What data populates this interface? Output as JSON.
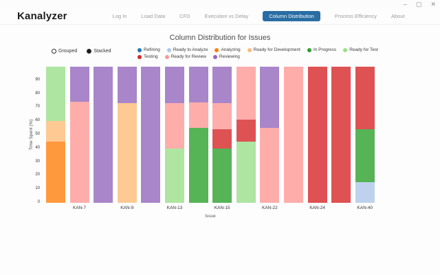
{
  "window": {
    "controls": {
      "minimize": "–",
      "maximize": "▢",
      "close": "✕"
    }
  },
  "header": {
    "brand": "Kanalyzer",
    "accent_color": "#2a6da3",
    "nav": [
      {
        "label": "Log In",
        "active": false
      },
      {
        "label": "Load Data",
        "active": false
      },
      {
        "label": "CFD",
        "active": false
      },
      {
        "label": "Execution vs Delay",
        "active": false
      },
      {
        "label": "Column Distribution",
        "active": true
      },
      {
        "label": "Process Efficiency",
        "active": false
      },
      {
        "label": "About",
        "active": false
      }
    ]
  },
  "chart": {
    "title": "Column Distribution for Issues",
    "mode_options": [
      {
        "label": "Grouped",
        "selected": false
      },
      {
        "label": "Stacked",
        "selected": true
      }
    ]
  },
  "chart_data": {
    "type": "bar",
    "stacked": true,
    "title": "Column Distribution for Issues",
    "xlabel": "Issue",
    "ylabel": "Time Spent (%)",
    "ylim": [
      0,
      100
    ],
    "y_ticks": [
      0,
      10,
      20,
      30,
      40,
      50,
      60,
      70,
      80,
      90
    ],
    "grid": false,
    "legend_position": "top",
    "legend_rows": [
      [
        "Refining",
        "Ready to Analyze",
        "Analyzing",
        "Ready for Development",
        "In Progress",
        "Ready for Test"
      ],
      [
        "Testing",
        "Ready for Review",
        "Reviewing"
      ]
    ],
    "colors": {
      "Refining": "#1f77b4",
      "Ready to Analyze": "#aec7e8",
      "Analyzing": "#ff7f0e",
      "Ready for Development": "#ffbb78",
      "In Progress": "#2ca02c",
      "Ready for Test": "#98df8a",
      "Testing": "#d62728",
      "Ready for Review": "#ff9896",
      "Reviewing": "#9467bd"
    },
    "bars": [
      {
        "label": "",
        "segments": [
          {
            "status": "Analyzing",
            "value": 45
          },
          {
            "status": "Ready for Development",
            "value": 15
          },
          {
            "status": "Ready for Test",
            "value": 40
          }
        ]
      },
      {
        "label": "KAN-7",
        "segments": [
          {
            "status": "Ready for Review",
            "value": 74
          },
          {
            "status": "Reviewing",
            "value": 26
          }
        ]
      },
      {
        "label": "",
        "segments": [
          {
            "status": "Reviewing",
            "value": 100
          }
        ]
      },
      {
        "label": "KAN-9",
        "segments": [
          {
            "status": "Ready for Development",
            "value": 73
          },
          {
            "status": "Reviewing",
            "value": 27
          }
        ]
      },
      {
        "label": "",
        "segments": [
          {
            "status": "Reviewing",
            "value": 100
          }
        ]
      },
      {
        "label": "KAN-13",
        "segments": [
          {
            "status": "Ready for Test",
            "value": 40
          },
          {
            "status": "Ready for Review",
            "value": 33
          },
          {
            "status": "Reviewing",
            "value": 27
          }
        ]
      },
      {
        "label": "",
        "segments": [
          {
            "status": "In Progress",
            "value": 55
          },
          {
            "status": "Ready for Review",
            "value": 19
          },
          {
            "status": "Reviewing",
            "value": 26
          }
        ]
      },
      {
        "label": "KAN-15",
        "segments": [
          {
            "status": "In Progress",
            "value": 40
          },
          {
            "status": "Testing",
            "value": 14
          },
          {
            "status": "Ready for Review",
            "value": 19
          },
          {
            "status": "Reviewing",
            "value": 27
          }
        ]
      },
      {
        "label": "",
        "segments": [
          {
            "status": "Ready for Test",
            "value": 45
          },
          {
            "status": "Testing",
            "value": 16
          },
          {
            "status": "Ready for Review",
            "value": 39
          }
        ]
      },
      {
        "label": "KAN-22",
        "segments": [
          {
            "status": "Ready for Review",
            "value": 55
          },
          {
            "status": "Reviewing",
            "value": 45
          }
        ]
      },
      {
        "label": "",
        "segments": [
          {
            "status": "Ready for Review",
            "value": 100
          }
        ]
      },
      {
        "label": "KAN-24",
        "segments": [
          {
            "status": "Testing",
            "value": 100
          }
        ]
      },
      {
        "label": "",
        "segments": [
          {
            "status": "Testing",
            "value": 100
          }
        ]
      },
      {
        "label": "KAN-40",
        "segments": [
          {
            "status": "Ready to Analyze",
            "value": 15
          },
          {
            "status": "In Progress",
            "value": 39
          },
          {
            "status": "Testing",
            "value": 46
          }
        ]
      }
    ]
  }
}
